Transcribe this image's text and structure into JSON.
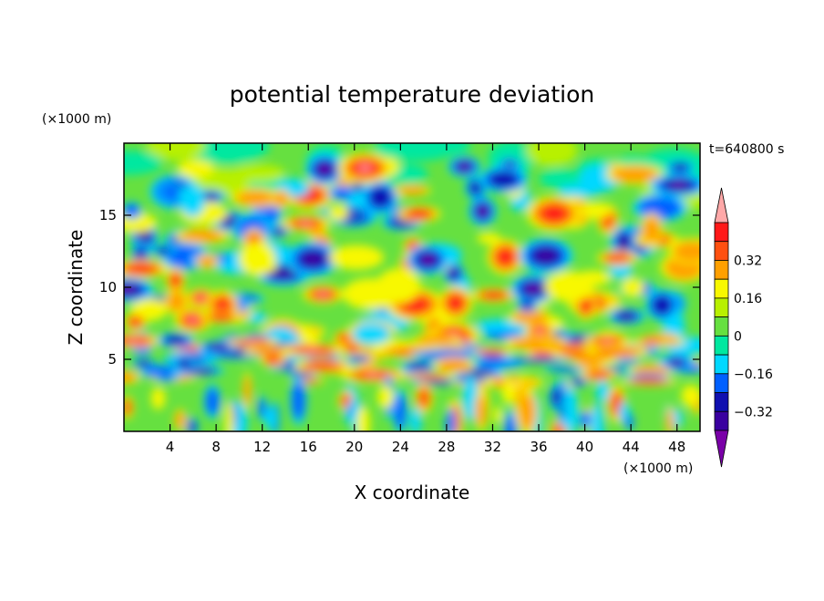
{
  "chart_data": {
    "type": "heatmap",
    "title": "potential temperature deviation",
    "time_label": "t=640800 s",
    "xlabel": "X coordinate",
    "ylabel": "Z coordinate",
    "x_unit": "(×1000 m)",
    "y_unit": "(×1000 m)",
    "xlim": [
      0,
      50
    ],
    "ylim": [
      0,
      20
    ],
    "x_ticks": [
      4,
      8,
      12,
      16,
      20,
      24,
      28,
      32,
      36,
      40,
      44,
      48
    ],
    "y_ticks": [
      5,
      10,
      15
    ],
    "colorbar": {
      "levels": [
        -0.4,
        -0.32,
        -0.24,
        -0.16,
        -0.08,
        0,
        0.08,
        0.16,
        0.24,
        0.32,
        0.4
      ],
      "labeled_values": [
        "0.32",
        "0.16",
        "0",
        "−0.16",
        "−0.32"
      ],
      "colors": [
        "#7a00a8",
        "#3a00a0",
        "#1010b0",
        "#0060ff",
        "#00d8ff",
        "#00e8a0",
        "#66e040",
        "#b8f000",
        "#f8f800",
        "#ffa000",
        "#ff5010",
        "#ff1818",
        "#ffa8a8"
      ]
    }
  }
}
